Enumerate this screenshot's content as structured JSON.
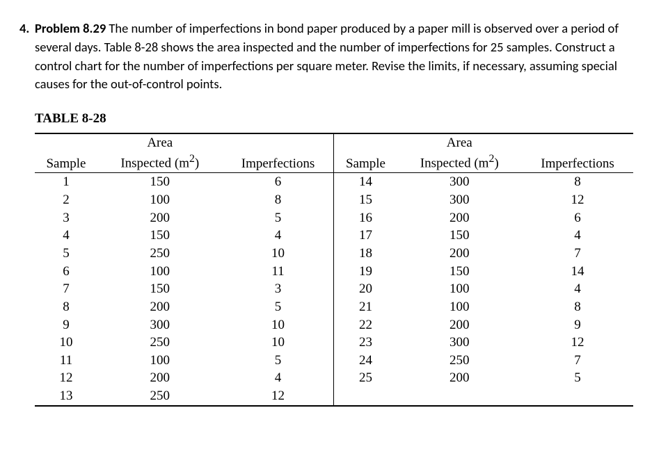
{
  "list_number": "4.",
  "problem_label": "Problem 8.29",
  "problem_text": "The number of imperfections in bond paper produced by a paper mill is observed over a period of several days. Table 8-28 shows the area inspected and the number of imperfections for 25 samples. Construct a control chart for the number of imperfections per square meter. Revise the limits, if necessary, assuming special causes for the out-of-control points.",
  "table_caption": "TABLE 8-28",
  "headers": {
    "sample": "Sample",
    "area_l1": "Area",
    "area_l2_pre": "Inspected (m",
    "area_l2_sup": "2",
    "area_l2_post": ")",
    "imperf": "Imperfections"
  },
  "left_rows": [
    {
      "s": "1",
      "a": "150",
      "i": "6"
    },
    {
      "s": "2",
      "a": "100",
      "i": "8"
    },
    {
      "s": "3",
      "a": "200",
      "i": "5"
    },
    {
      "s": "4",
      "a": "150",
      "i": "4"
    },
    {
      "s": "5",
      "a": "250",
      "i": "10"
    },
    {
      "s": "6",
      "a": "100",
      "i": "11"
    },
    {
      "s": "7",
      "a": "150",
      "i": "3"
    },
    {
      "s": "8",
      "a": "200",
      "i": "5"
    },
    {
      "s": "9",
      "a": "300",
      "i": "10"
    },
    {
      "s": "10",
      "a": "250",
      "i": "10"
    },
    {
      "s": "11",
      "a": "100",
      "i": "5"
    },
    {
      "s": "12",
      "a": "200",
      "i": "4"
    },
    {
      "s": "13",
      "a": "250",
      "i": "12"
    }
  ],
  "right_rows": [
    {
      "s": "14",
      "a": "300",
      "i": "8"
    },
    {
      "s": "15",
      "a": "300",
      "i": "12"
    },
    {
      "s": "16",
      "a": "200",
      "i": "6"
    },
    {
      "s": "17",
      "a": "150",
      "i": "4"
    },
    {
      "s": "18",
      "a": "200",
      "i": "7"
    },
    {
      "s": "19",
      "a": "150",
      "i": "14"
    },
    {
      "s": "20",
      "a": "100",
      "i": "4"
    },
    {
      "s": "21",
      "a": "100",
      "i": "8"
    },
    {
      "s": "22",
      "a": "200",
      "i": "9"
    },
    {
      "s": "23",
      "a": "300",
      "i": "12"
    },
    {
      "s": "24",
      "a": "250",
      "i": "7"
    },
    {
      "s": "25",
      "a": "200",
      "i": "5"
    }
  ]
}
